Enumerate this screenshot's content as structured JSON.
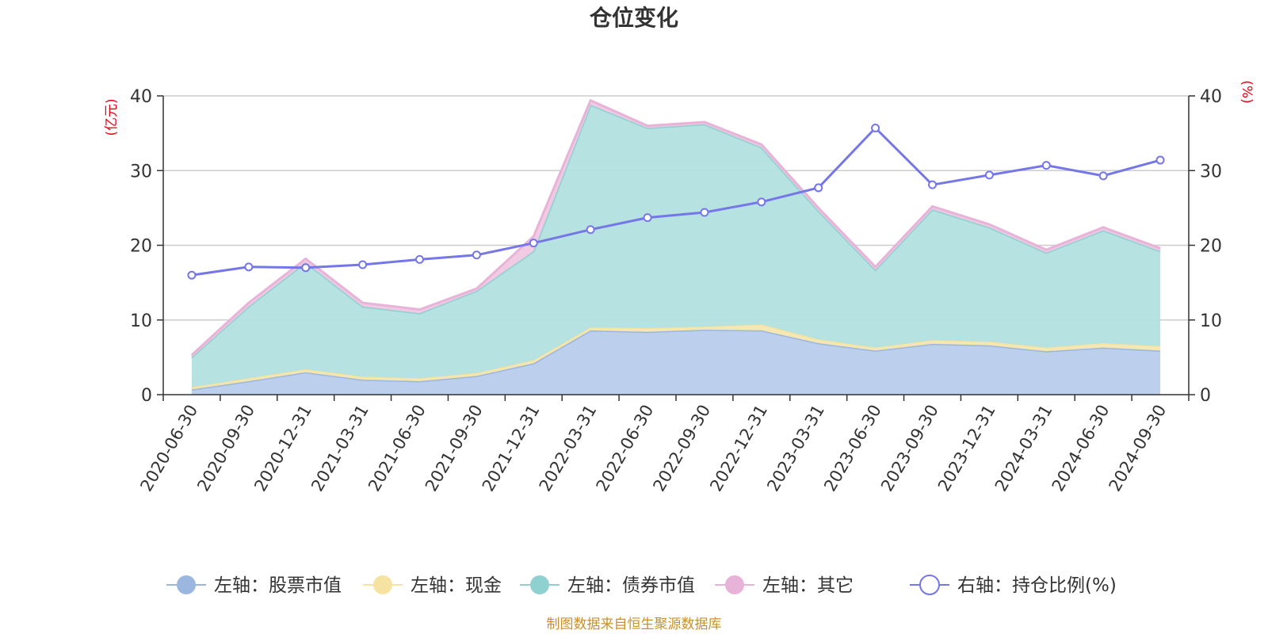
{
  "chart_data": {
    "type": "area",
    "title": "仓位变化",
    "left_axis": {
      "unit_label": "(亿元)",
      "ylim": [
        0,
        40
      ],
      "ticks": [
        "0",
        "10",
        "20",
        "30",
        "40"
      ]
    },
    "right_axis": {
      "unit_label": "(%)",
      "ylim": [
        0,
        40
      ],
      "ticks": [
        "0",
        "10",
        "20",
        "30",
        "40"
      ]
    },
    "categories": [
      "2020-06-30",
      "2020-09-30",
      "2020-12-31",
      "2021-03-31",
      "2021-06-30",
      "2021-09-30",
      "2021-12-31",
      "2022-03-31",
      "2022-06-30",
      "2022-09-30",
      "2022-12-31",
      "2023-03-31",
      "2023-06-30",
      "2023-09-30",
      "2023-12-31",
      "2024-03-31",
      "2024-06-30",
      "2024-09-30"
    ],
    "grid": true,
    "legend_position": "bottom",
    "series": [
      {
        "name": "左轴：股票市值",
        "axis": "left",
        "kind": "stacked-area",
        "color": "#9bb7e0",
        "fill": "#b8cceb",
        "values": [
          0.7,
          1.8,
          3.0,
          2.0,
          1.8,
          2.5,
          4.2,
          8.6,
          8.4,
          8.7,
          8.6,
          6.9,
          5.9,
          6.8,
          6.6,
          5.8,
          6.3,
          5.9
        ]
      },
      {
        "name": "左轴：现金",
        "axis": "left",
        "kind": "stacked-area",
        "color": "#f6e3a1",
        "fill": "#f6e7b0",
        "values": [
          0.3,
          0.4,
          0.4,
          0.4,
          0.4,
          0.4,
          0.4,
          0.4,
          0.5,
          0.4,
          0.8,
          0.5,
          0.4,
          0.5,
          0.5,
          0.5,
          0.6,
          0.6
        ]
      },
      {
        "name": "左轴：债券市值",
        "axis": "left",
        "kind": "stacked-area",
        "color": "#8fd1d1",
        "fill": "#b3e0e0",
        "values": [
          4.0,
          9.6,
          14.3,
          9.4,
          8.7,
          11.0,
          14.6,
          29.8,
          26.8,
          27.1,
          23.7,
          17.2,
          10.4,
          17.5,
          15.3,
          12.7,
          15.1,
          12.7
        ]
      },
      {
        "name": "左轴：其它",
        "axis": "left",
        "kind": "stacked-area",
        "color": "#e8b3d8",
        "fill": "#f0c8e3",
        "values": [
          0.3,
          0.5,
          0.5,
          0.5,
          0.5,
          0.3,
          2.0,
          0.6,
          0.3,
          0.3,
          0.4,
          0.4,
          0.4,
          0.4,
          0.4,
          0.4,
          0.4,
          0.4
        ]
      },
      {
        "name": "右轴：持仓比例(%)",
        "axis": "right",
        "kind": "line",
        "color": "#7577e8",
        "values": [
          16.0,
          17.1,
          17.0,
          17.4,
          18.1,
          18.7,
          20.3,
          22.1,
          23.7,
          24.4,
          25.8,
          27.7,
          35.7,
          28.1,
          29.4,
          30.7,
          29.3,
          31.4
        ]
      }
    ]
  },
  "footer": {
    "source": "制图数据来自恒生聚源数据库"
  }
}
